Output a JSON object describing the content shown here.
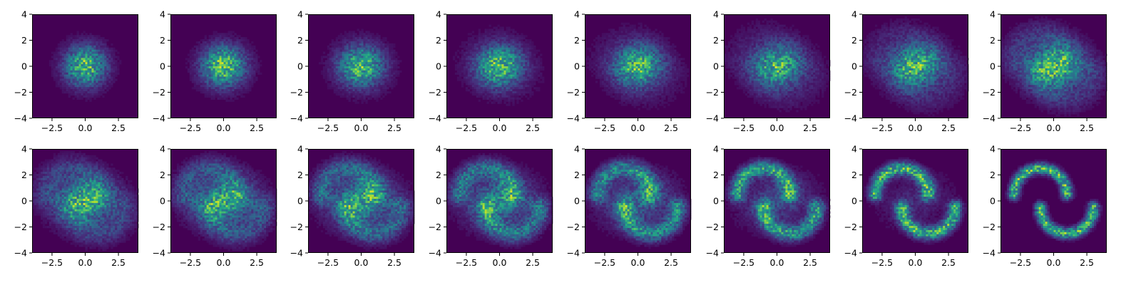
{
  "chart_data": {
    "type": "heatmap",
    "kind": "2d-histogram-grid",
    "rows": 2,
    "cols": 8,
    "colormap": "viridis",
    "background_color": "#440154",
    "xlim": [
      -4,
      4
    ],
    "ylim": [
      -4,
      4
    ],
    "bins": 50,
    "x_ticks": [
      -2.5,
      0.0,
      2.5
    ],
    "x_tick_labels": [
      "−2.5",
      "0.0",
      "2.5"
    ],
    "y_ticks": [
      -4,
      -2,
      0,
      2,
      4
    ],
    "y_tick_labels": [
      "−4",
      "−2",
      "0",
      "2",
      "4"
    ],
    "panel_description": "Distribution transitions from an isotropic Gaussian (first panel) to a two-moons shape (last panel) over 16 steps",
    "panels": [
      {
        "step": 0
      },
      {
        "step": 1
      },
      {
        "step": 2
      },
      {
        "step": 3
      },
      {
        "step": 4
      },
      {
        "step": 5
      },
      {
        "step": 6
      },
      {
        "step": 7
      },
      {
        "step": 8
      },
      {
        "step": 9
      },
      {
        "step": 10
      },
      {
        "step": 11
      },
      {
        "step": 12
      },
      {
        "step": 13
      },
      {
        "step": 14
      },
      {
        "step": 15
      }
    ],
    "grid": false,
    "legend": "none",
    "title": ""
  }
}
